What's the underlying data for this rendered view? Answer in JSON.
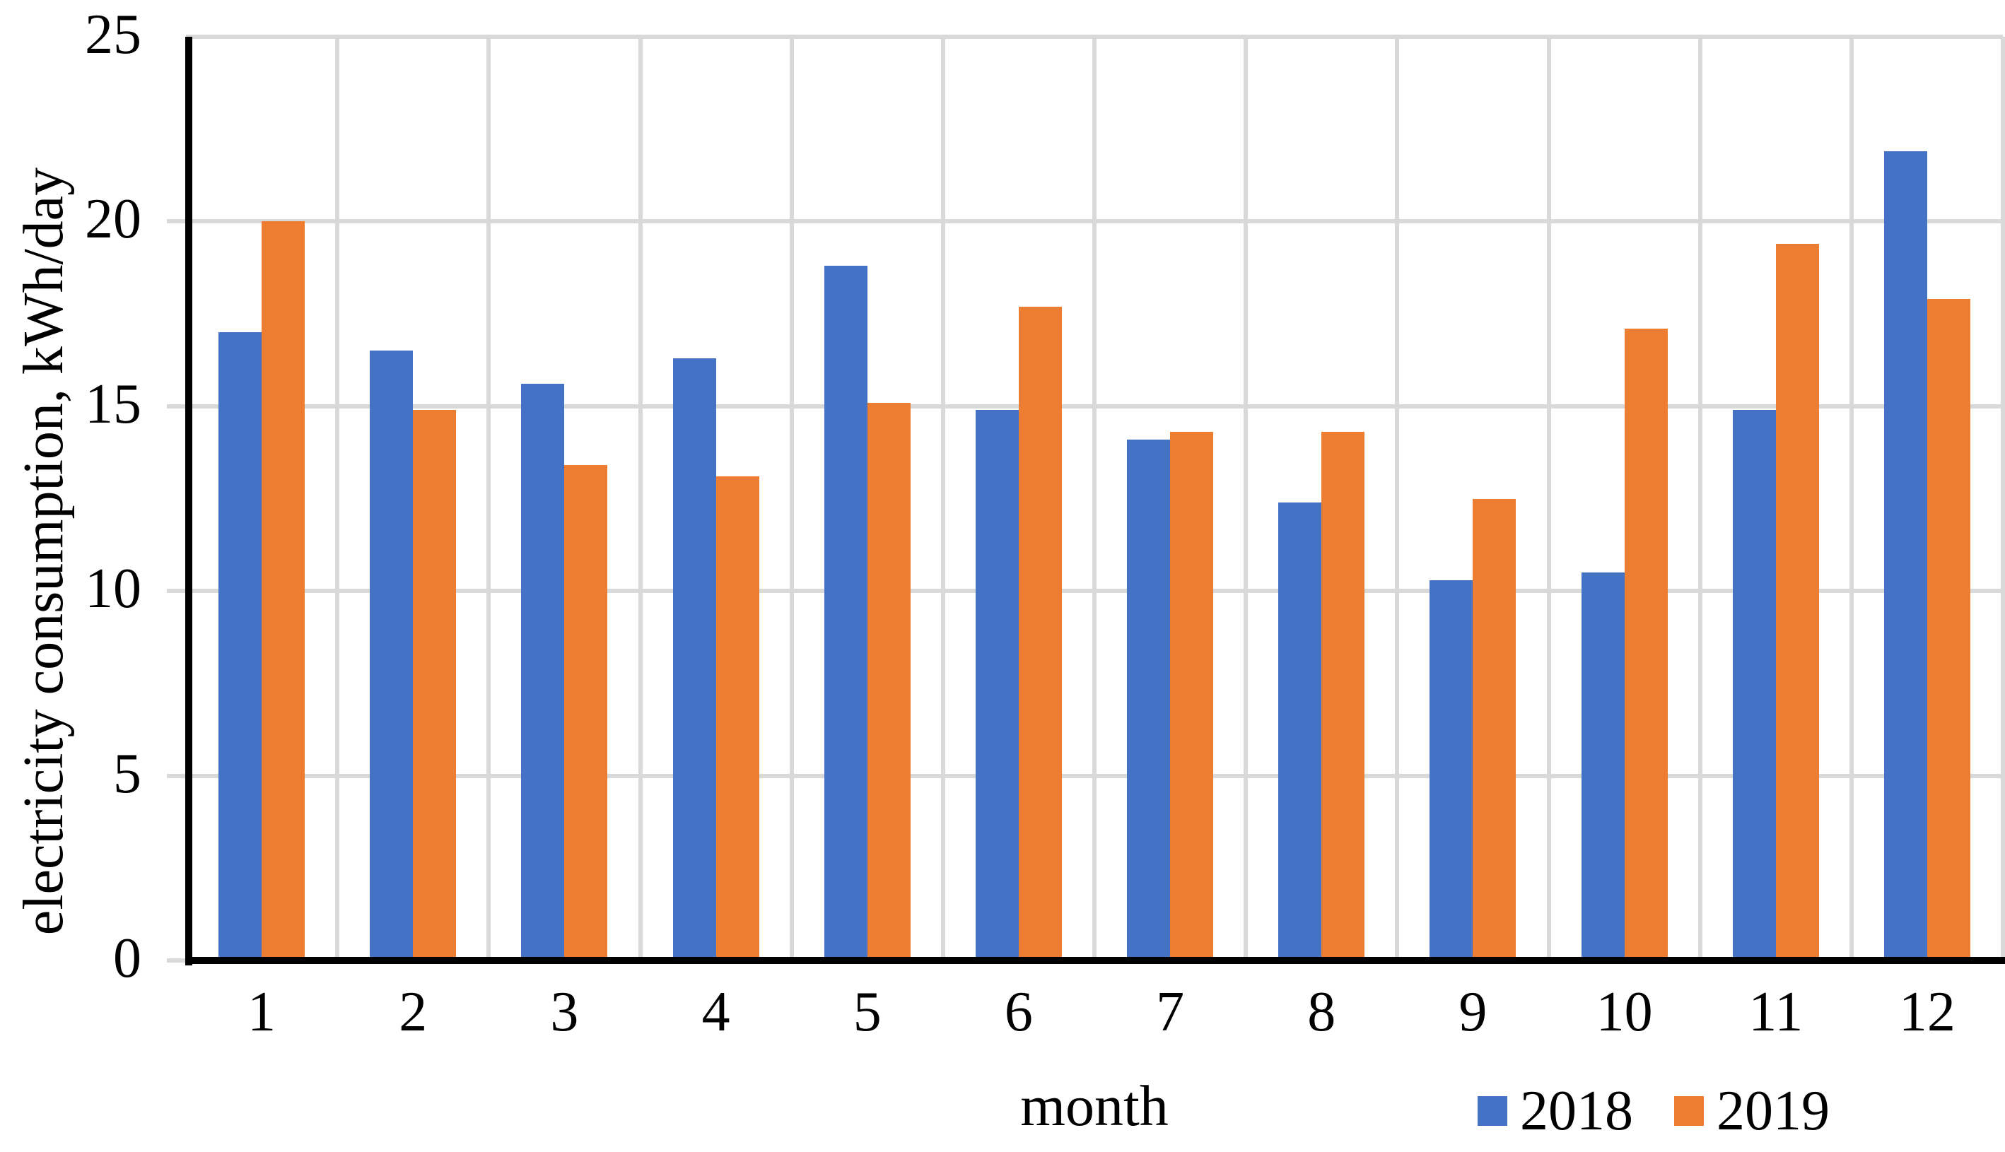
{
  "chart_data": {
    "type": "bar",
    "title": "",
    "categories": [
      "1",
      "2",
      "3",
      "4",
      "5",
      "6",
      "7",
      "8",
      "9",
      "10",
      "11",
      "12"
    ],
    "series": [
      {
        "name": "2018",
        "color": "#4472C4",
        "values": [
          17.0,
          16.5,
          15.6,
          16.3,
          18.8,
          14.9,
          14.1,
          12.4,
          10.3,
          10.5,
          14.9,
          21.9
        ]
      },
      {
        "name": "2019",
        "color": "#ED7D31",
        "values": [
          20.0,
          14.9,
          13.4,
          13.1,
          15.1,
          17.7,
          14.3,
          14.3,
          12.5,
          17.1,
          19.4,
          17.9
        ]
      }
    ],
    "xlabel": "month",
    "ylabel": "electricity consumption, kWh/day",
    "ylim": [
      0,
      25
    ],
    "yticks": [
      0,
      5,
      10,
      15,
      20,
      25
    ],
    "grid": "horizontal-and-vertical",
    "grid_color": "#D9D9D9",
    "axis_color": "#000000",
    "background_color": "#FFFFFF",
    "legend_position": "bottom-right"
  }
}
